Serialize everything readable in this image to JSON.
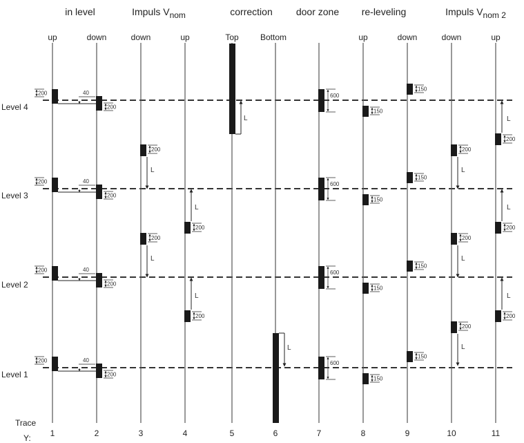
{
  "group_labels": [
    {
      "text": "in level",
      "sub": ""
    },
    {
      "text": "Impuls V",
      "sub": "nom"
    },
    {
      "text": "correction",
      "sub": ""
    },
    {
      "text": "door zone",
      "sub": ""
    },
    {
      "text": "re-leveling",
      "sub": ""
    },
    {
      "text": "Impuls V",
      "sub": "nom 2"
    }
  ],
  "trace_labels": [
    "up",
    "down",
    "down",
    "up",
    "Top",
    "Bottom",
    "up",
    "down",
    "down",
    "up"
  ],
  "trace_numbers": [
    "1",
    "2",
    "3",
    "4",
    "5",
    "6",
    "7",
    "8",
    "9",
    "10",
    "11"
  ],
  "level_labels": [
    "Level 4",
    "Level 3",
    "Level 2",
    "Level 1"
  ],
  "axis_labels": {
    "trace": "Trace",
    "y": "Y:"
  },
  "dimensions": {
    "d200": "200",
    "d40": "40",
    "d600": "600",
    "d150": "150",
    "L": "L"
  }
}
